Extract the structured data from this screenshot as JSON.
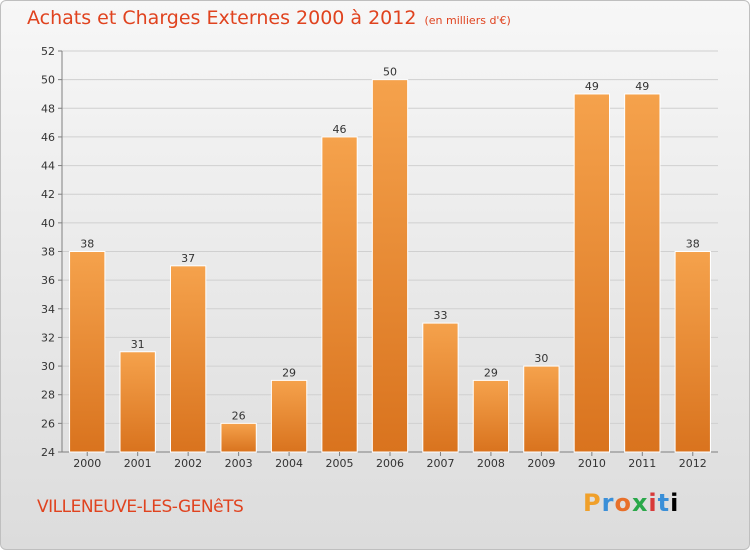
{
  "chart_data": {
    "type": "bar",
    "title": "Achats et Charges Externes 2000 à 2012",
    "subtitle": "(en milliers d'€)",
    "categories": [
      "2000",
      "2001",
      "2002",
      "2003",
      "2004",
      "2005",
      "2006",
      "2007",
      "2008",
      "2009",
      "2010",
      "2011",
      "2012"
    ],
    "values": [
      38,
      31,
      37,
      26,
      29,
      46,
      50,
      33,
      29,
      30,
      49,
      49,
      38
    ],
    "ylim": [
      24,
      52
    ],
    "yticks": [
      24,
      26,
      28,
      30,
      32,
      34,
      36,
      38,
      40,
      42,
      44,
      46,
      48,
      50,
      52
    ],
    "grid": true,
    "bar_color_top": "#f5a24c",
    "bar_color_bottom": "#d9731e"
  },
  "footer": {
    "commune": "VILLENEUVE-LES-GENêTS",
    "logo": "Proxiti"
  }
}
